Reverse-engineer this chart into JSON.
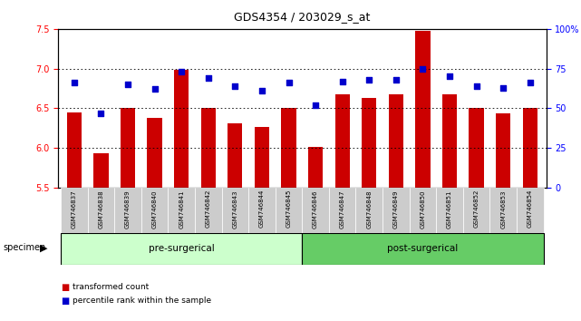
{
  "title": "GDS4354 / 203029_s_at",
  "samples": [
    "GSM746837",
    "GSM746838",
    "GSM746839",
    "GSM746840",
    "GSM746841",
    "GSM746842",
    "GSM746843",
    "GSM746844",
    "GSM746845",
    "GSM746846",
    "GSM746847",
    "GSM746848",
    "GSM746849",
    "GSM746850",
    "GSM746851",
    "GSM746852",
    "GSM746853",
    "GSM746854"
  ],
  "bar_values": [
    6.45,
    5.93,
    6.5,
    6.38,
    6.98,
    6.5,
    6.31,
    6.27,
    6.5,
    6.01,
    6.68,
    6.63,
    6.68,
    7.48,
    6.68,
    6.5,
    6.44,
    6.5
  ],
  "percentile_values": [
    66,
    47,
    65,
    62,
    73,
    69,
    64,
    61,
    66,
    52,
    67,
    68,
    68,
    75,
    70,
    64,
    63,
    66
  ],
  "ylim_left": [
    5.5,
    7.5
  ],
  "ylim_right": [
    0,
    100
  ],
  "yticks_left": [
    5.5,
    6.0,
    6.5,
    7.0,
    7.5
  ],
  "yticks_right": [
    0,
    25,
    50,
    75,
    100
  ],
  "ytick_labels_right": [
    "0",
    "25",
    "50",
    "75",
    "100%"
  ],
  "bar_color": "#cc0000",
  "percentile_color": "#0000cc",
  "bar_bottom": 5.5,
  "pre_surgical_count": 9,
  "post_surgical_count": 9,
  "pre_color": "#ccffcc",
  "post_color": "#66cc66",
  "group_label_pre": "pre-surgerical",
  "group_label_post": "post-surgerical",
  "specimen_label": "specimen",
  "legend_bar": "transformed count",
  "legend_pct": "percentile rank within the sample",
  "grid_color": "black",
  "tick_label_bg": "#cccccc"
}
